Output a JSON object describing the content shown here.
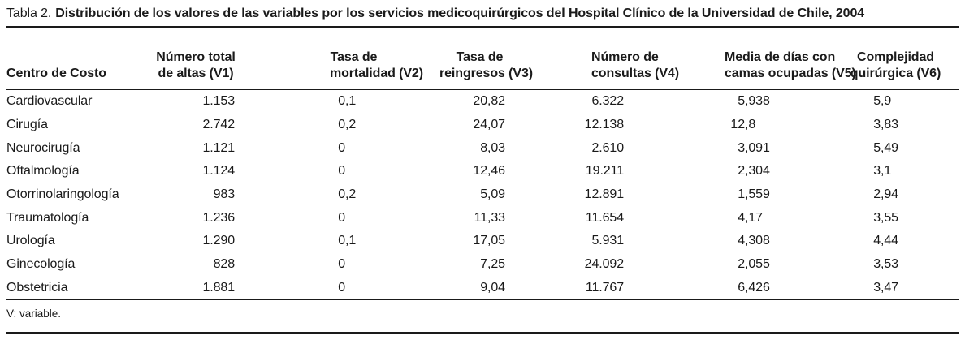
{
  "colors": {
    "text": "#1a1a1a",
    "rule": "#1a1a1a",
    "background": "#ffffff"
  },
  "table": {
    "label": "Tabla 2.",
    "title": "Distribución de los valores de las variables por los servicios medicoquirúrgicos del Hospital Clínico de la Universidad de Chile, 2004",
    "columns": [
      {
        "id": "centro-de-costo",
        "lines": [
          "Centro de Costo"
        ]
      },
      {
        "id": "v1",
        "lines": [
          "Número total",
          "de altas (V1)"
        ]
      },
      {
        "id": "v2",
        "lines": [
          "Tasa de",
          "mortalidad (V2)"
        ]
      },
      {
        "id": "v3",
        "lines": [
          "Tasa de",
          "reingresos (V3)"
        ]
      },
      {
        "id": "v4",
        "lines": [
          "Número de",
          "consultas (V4)"
        ]
      },
      {
        "id": "v5",
        "lines": [
          "Media de días con",
          "camas ocupadas (V5)"
        ]
      },
      {
        "id": "v6",
        "lines": [
          "Complejidad",
          "quirúrgica (V6)"
        ]
      }
    ],
    "rows": [
      [
        "Cardiovascular",
        "1.153",
        "0,1",
        "20,82",
        "6.322",
        "5,938",
        "5,9"
      ],
      [
        "Cirugía",
        "2.742",
        "0,2",
        "24,07",
        "12.138",
        "12,8",
        "3,83"
      ],
      [
        "Neurocirugía",
        "1.121",
        "0",
        "8,03",
        "2.610",
        "3,091",
        "5,49"
      ],
      [
        "Oftalmología",
        "1.124",
        "0",
        "12,46",
        "19.211",
        "2,304",
        "3,1"
      ],
      [
        "Otorrinolaringología",
        "983",
        "0,2",
        "5,09",
        "12.891",
        "1,559",
        "2,94"
      ],
      [
        "Traumatología",
        "1.236",
        "0",
        "11,33",
        "11.654",
        "4,17",
        "3,55"
      ],
      [
        "Urología",
        "1.290",
        "0,1",
        "17,05",
        "5.931",
        "4,308",
        "4,44"
      ],
      [
        "Ginecología",
        "828",
        "0",
        "7,25",
        "24.092",
        "2,055",
        "3,53"
      ],
      [
        "Obstetricia",
        "1.881",
        "0",
        "9,04",
        "11.767",
        "6,426",
        "3,47"
      ]
    ],
    "footnote": "V: variable."
  }
}
